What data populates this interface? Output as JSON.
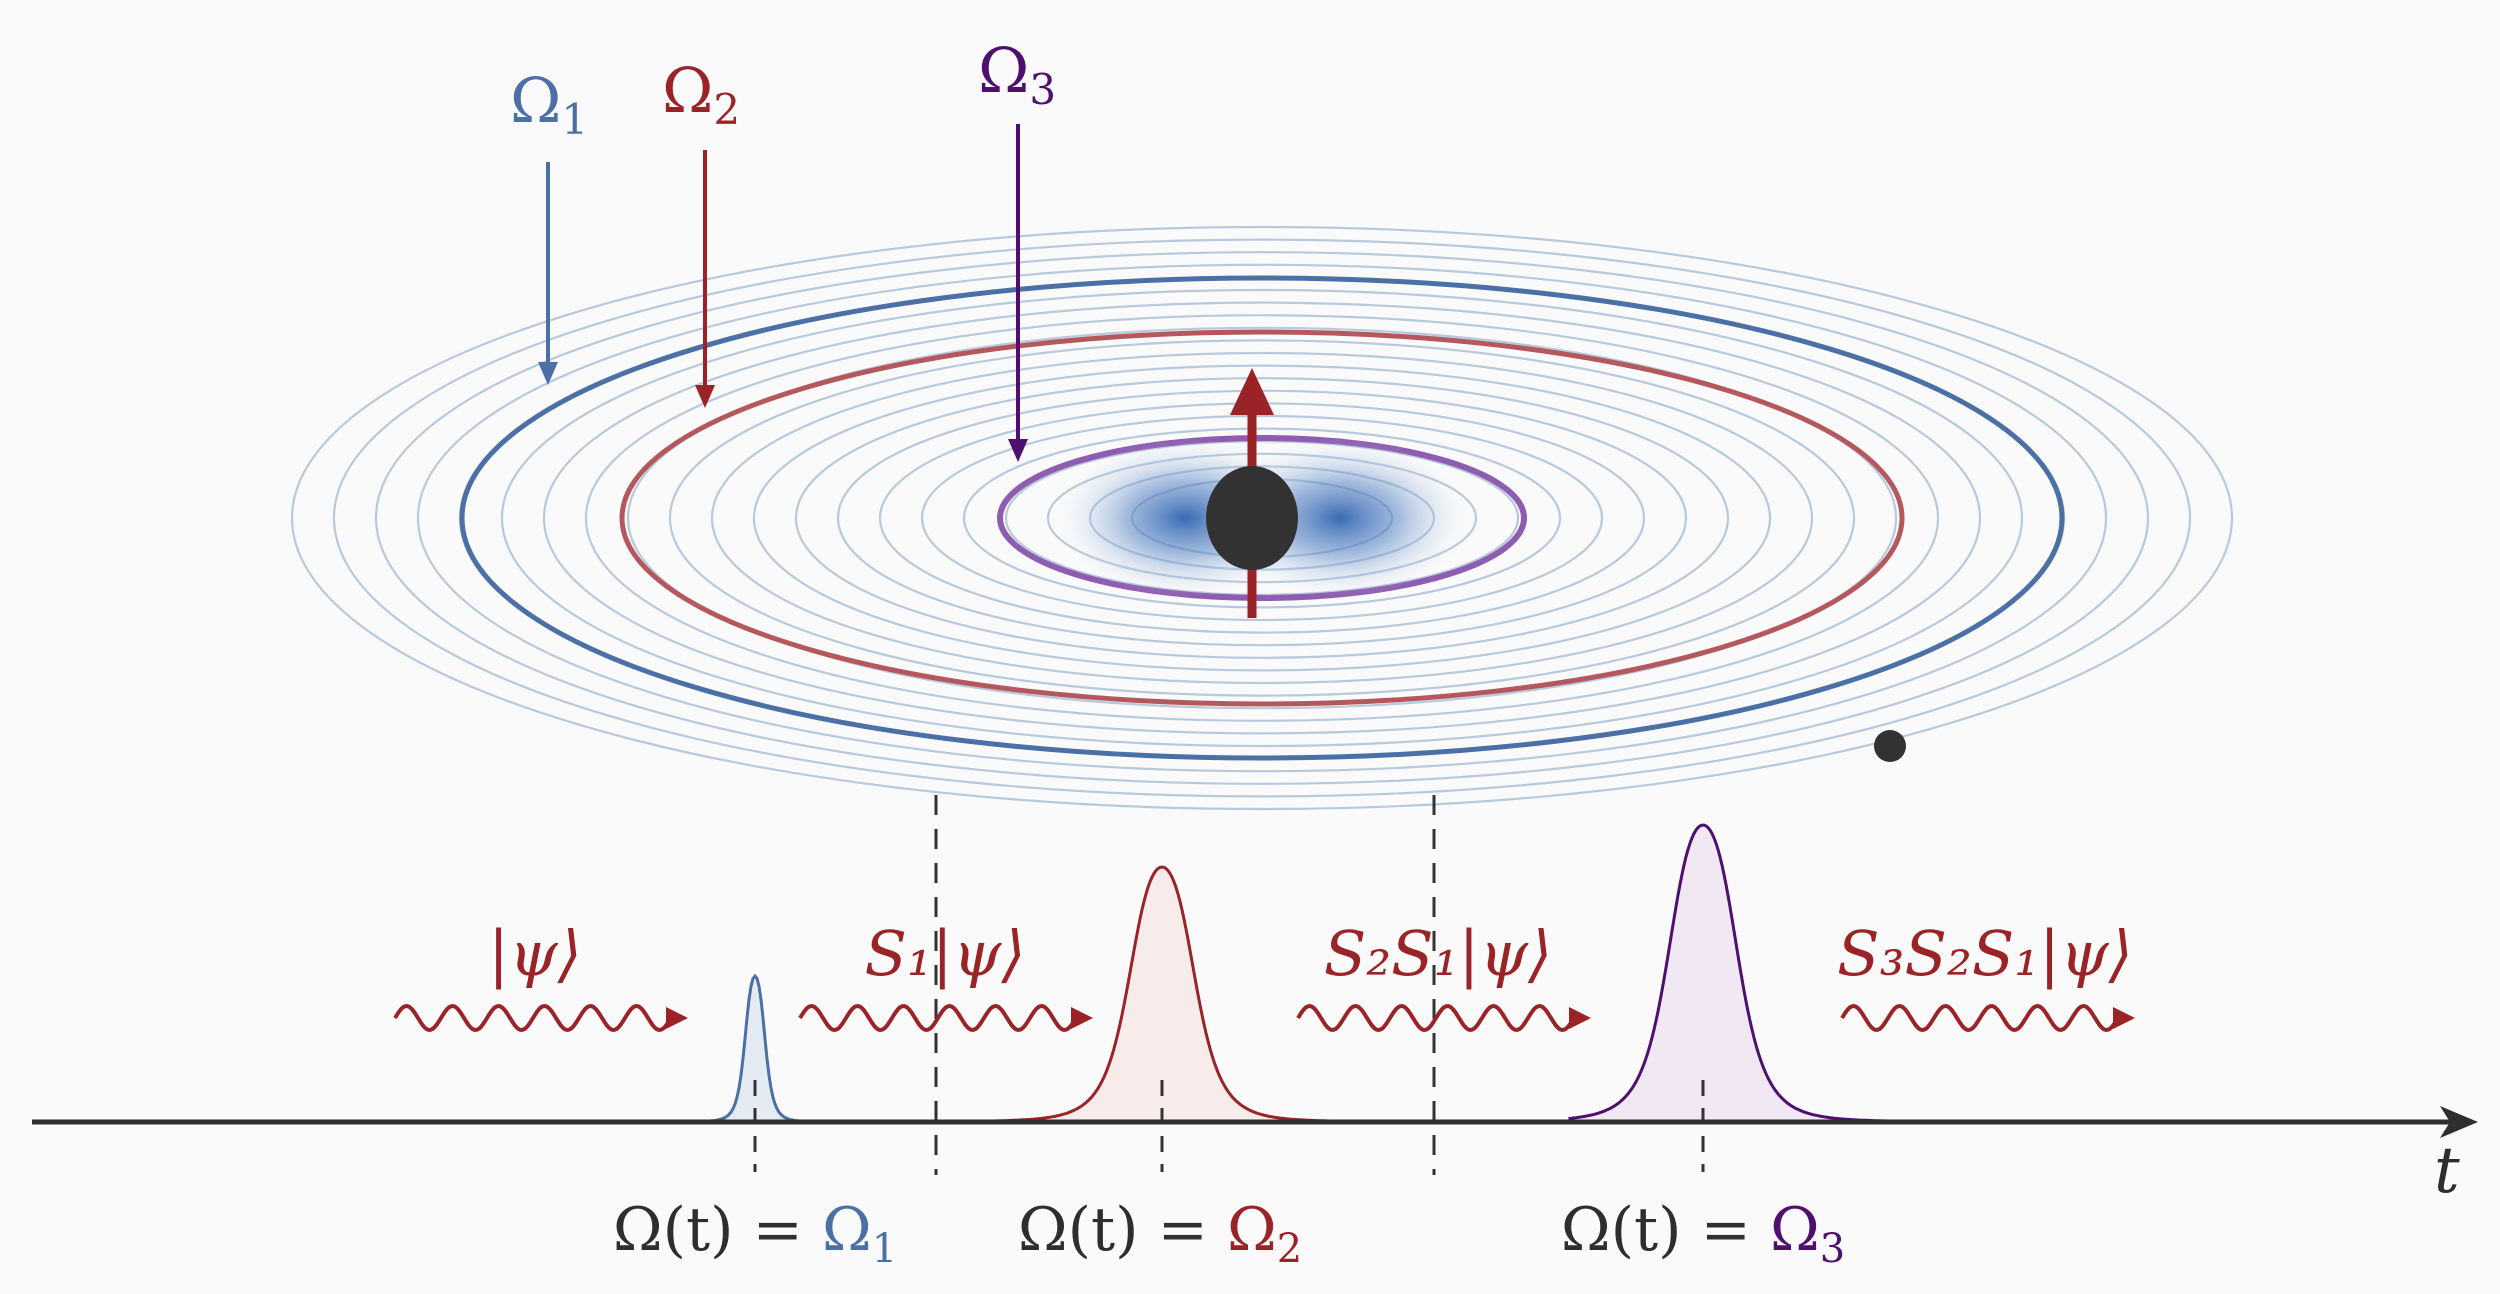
{
  "colors": {
    "blue": "#4a70a6",
    "red": "#9a2328",
    "purple": "#4e0f6e",
    "axis": "#2e2e2e",
    "ring_light": "#b9c9dc",
    "nucleus": "#323232"
  },
  "orbit_labels": [
    {
      "base": "Ω",
      "sub": "1",
      "color": "blue"
    },
    {
      "base": "Ω",
      "sub": "2",
      "color": "red"
    },
    {
      "base": "Ω",
      "sub": "3",
      "color": "purple"
    }
  ],
  "states": [
    {
      "text": "|ψ⟩"
    },
    {
      "text": "S₁|ψ⟩"
    },
    {
      "text": "S₂S₁|ψ⟩"
    },
    {
      "text": "S₃S₂S₁|ψ⟩"
    }
  ],
  "axis_label": "t",
  "freq_labels": [
    {
      "lhs": "Ω(t) = ",
      "rhs_base": "Ω",
      "rhs_sub": "1",
      "color": "blue"
    },
    {
      "lhs": "Ω(t) = ",
      "rhs_base": "Ω",
      "rhs_sub": "2",
      "color": "red"
    },
    {
      "lhs": "Ω(t) = ",
      "rhs_base": "Ω",
      "rhs_sub": "3",
      "color": "purple"
    }
  ]
}
